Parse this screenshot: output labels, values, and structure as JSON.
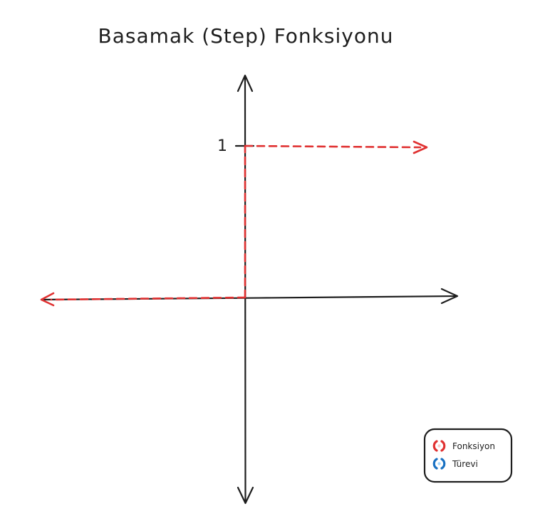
{
  "diagram": {
    "title": "Basamak (Step) Fonksiyonu",
    "y_tick_label": "1",
    "colors": {
      "axis": "#1e1e1e",
      "function": "#e03131",
      "derivative": "#1971c2"
    }
  },
  "legend": {
    "items": [
      {
        "label": "Fonksiyon",
        "color": "#e03131"
      },
      {
        "label": "Türevi",
        "color": "#1971c2"
      }
    ]
  }
}
